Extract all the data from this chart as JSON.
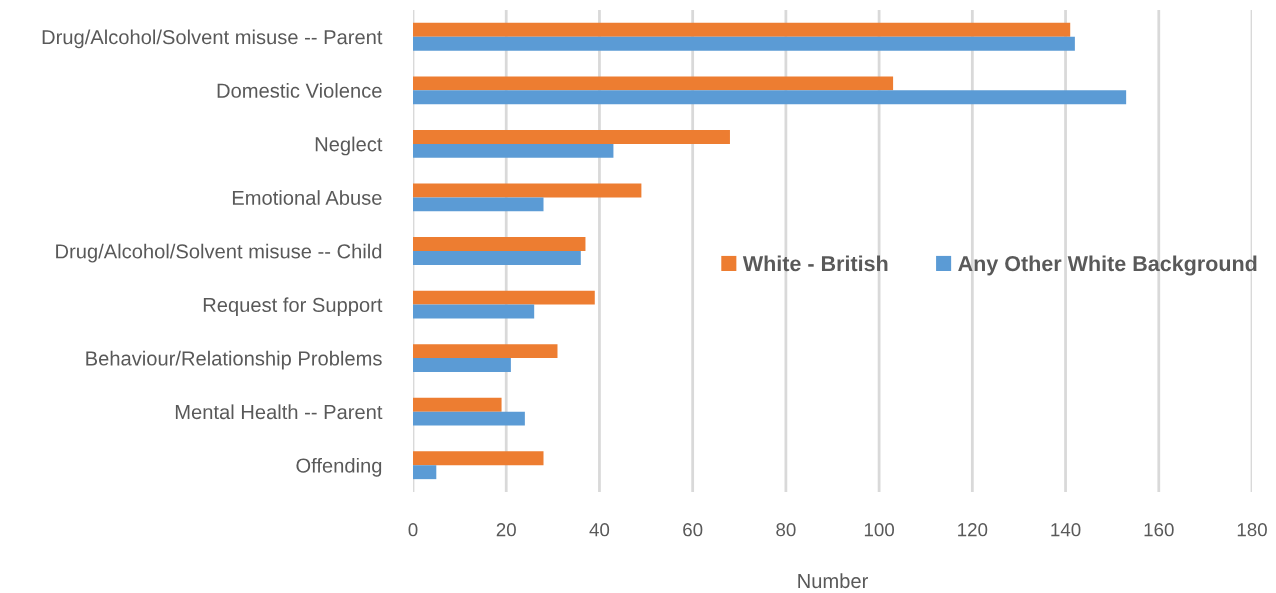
{
  "chart_data": {
    "type": "bar",
    "orientation": "horizontal",
    "xlabel": "Number",
    "categories": [
      "Drug/Alcohol/Solvent misuse -- Parent",
      "Domestic Violence",
      "Neglect",
      "Emotional Abuse",
      "Drug/Alcohol/Solvent misuse -- Child",
      "Request for Support",
      "Behaviour/Relationship Problems",
      "Mental Health -- Parent",
      "Offending"
    ],
    "series": [
      {
        "name": "White - British",
        "color": "#ed7d31",
        "values": [
          141,
          103,
          68,
          49,
          37,
          39,
          31,
          19,
          28
        ]
      },
      {
        "name": "Any Other White Background",
        "color": "#5b9bd5",
        "values": [
          142,
          153,
          43,
          28,
          36,
          26,
          21,
          24,
          5
        ]
      }
    ],
    "xlim": [
      0,
      180
    ],
    "xticks": [
      0,
      20,
      40,
      60,
      80,
      100,
      120,
      140,
      160,
      180
    ],
    "grid": "x",
    "legend": "right"
  }
}
